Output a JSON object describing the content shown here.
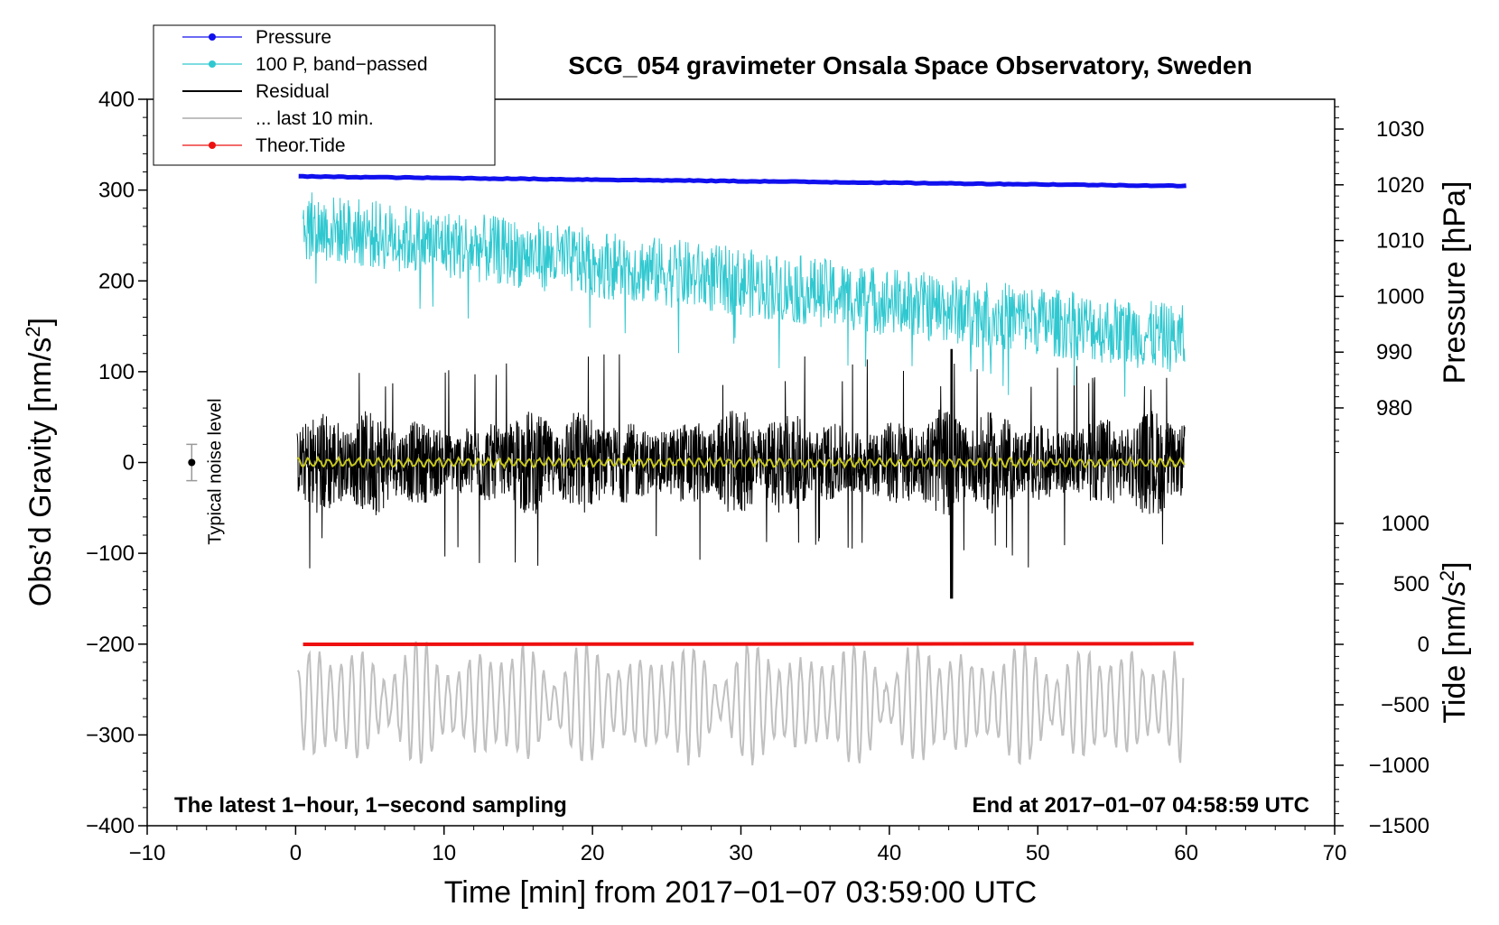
{
  "chart_data": {
    "type": "line",
    "title": "SCG_054 gravimeter Onsala Space Observatory, Sweden",
    "xlabel": "Time [min] from 2017−01−07 03:59:00 UTC",
    "ylabel_main": "Obs’d Gravity [nm/s",
    "ylabel_main_sup": "2",
    "ylabel_main_tail": "]",
    "ylabel_pressure": "Pressure [hPa]",
    "ylabel_tide": "Tide [nm/s",
    "ylabel_tide_sup": "2",
    "ylabel_tide_tail": "]",
    "xlim": [
      -10,
      70
    ],
    "ylim_main": [
      -400,
      400
    ],
    "pressure_axis": {
      "ticks": [
        980,
        990,
        1000,
        1010,
        1020,
        1030
      ],
      "display_range": [
        970,
        1035
      ]
    },
    "tide_axis": {
      "ticks": [
        -1500,
        -1000,
        -500,
        0,
        500,
        1000
      ]
    },
    "x_ticks": [
      -10,
      0,
      10,
      20,
      30,
      40,
      50,
      60,
      70
    ],
    "x_tick_labels": [
      "−10",
      "0",
      "10",
      "20",
      "30",
      "40",
      "50",
      "60",
      "70"
    ],
    "y_ticks": [
      -400,
      -300,
      -200,
      -100,
      0,
      100,
      200,
      300,
      400
    ],
    "y_tick_labels": [
      "−400",
      "−300",
      "−200",
      "−100",
      "0",
      "100",
      "200",
      "300",
      "400"
    ],
    "pressure_tick_labels": [
      "980",
      "990",
      "1000",
      "1010",
      "1020",
      "1030"
    ],
    "tide_tick_labels": [
      "−1500",
      "−1000",
      "−500",
      "0",
      "500",
      "1000"
    ],
    "legend": [
      {
        "label": "Pressure",
        "color": "#1010ee",
        "marker": true
      },
      {
        "label": "100 P, band−passed",
        "color": "#30c8d0",
        "marker": true
      },
      {
        "label": "Residual",
        "color": "#000000",
        "marker": false
      },
      {
        "label": "... last 10 min.",
        "color": "#c0c0c0",
        "marker": false
      },
      {
        "label": "Theor.Tide",
        "color": "#ee1010",
        "marker": true
      }
    ],
    "series": [
      {
        "name": "Pressure",
        "color": "#1010ee",
        "axis": "pressure",
        "start": [
          0.2,
          1021.5
        ],
        "end": [
          60,
          1019.8
        ]
      },
      {
        "name": "100 P, band-passed",
        "color": "#30c8d0",
        "axis": "main",
        "trend_start": 262,
        "trend_end": 135,
        "amplitude": 38
      },
      {
        "name": "Residual",
        "color": "#000000",
        "axis": "main",
        "center": 0,
        "typical_amplitude": 55,
        "max_peak": 125,
        "min_peak": -150
      },
      {
        "name": "Residual smoothed",
        "color": "#c8c820",
        "axis": "main",
        "center": 0,
        "amplitude": 4
      },
      {
        "name": "... last 10 min.",
        "color": "#c0c0c0",
        "axis": "main",
        "center": -265,
        "amplitude": 55,
        "max_peak": -158,
        "min_peak": -345
      },
      {
        "name": "Theor.Tide",
        "color": "#ee1010",
        "axis": "tide",
        "start": [
          0.5,
          0
        ],
        "end": [
          60.5,
          5
        ]
      }
    ],
    "noise_level": {
      "label": "Typical noise level",
      "x": -7,
      "center": 0,
      "half_range": 20
    },
    "footnote_left": "The latest 1−hour, 1−second sampling",
    "footnote_right": "End at 2017−01−07 04:58:59 UTC"
  }
}
